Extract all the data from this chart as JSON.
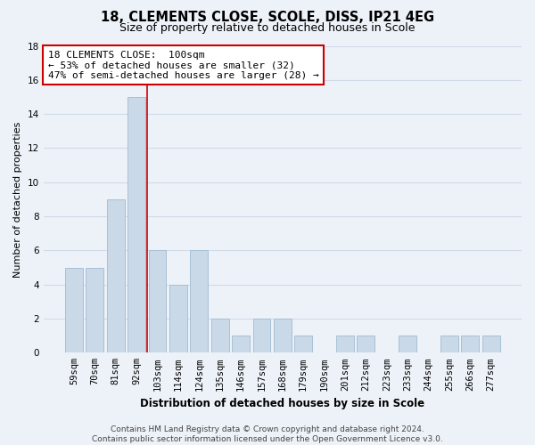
{
  "title1": "18, CLEMENTS CLOSE, SCOLE, DISS, IP21 4EG",
  "title2": "Size of property relative to detached houses in Scole",
  "xlabel": "Distribution of detached houses by size in Scole",
  "ylabel": "Number of detached properties",
  "categories": [
    "59sqm",
    "70sqm",
    "81sqm",
    "92sqm",
    "103sqm",
    "114sqm",
    "124sqm",
    "135sqm",
    "146sqm",
    "157sqm",
    "168sqm",
    "179sqm",
    "190sqm",
    "201sqm",
    "212sqm",
    "223sqm",
    "233sqm",
    "244sqm",
    "255sqm",
    "266sqm",
    "277sqm"
  ],
  "values": [
    5,
    5,
    9,
    15,
    6,
    4,
    6,
    2,
    1,
    2,
    2,
    1,
    0,
    1,
    1,
    0,
    1,
    0,
    1,
    1,
    1
  ],
  "bar_color": "#c9d9e8",
  "bar_edge_color": "#a8c0d6",
  "property_line_x": 3.5,
  "property_line_color": "#cc0000",
  "annotation_text": "18 CLEMENTS CLOSE:  100sqm\n← 53% of detached houses are smaller (32)\n47% of semi-detached houses are larger (28) →",
  "annotation_box_facecolor": "#ffffff",
  "annotation_box_edgecolor": "#cc0000",
  "ylim": [
    0,
    18
  ],
  "yticks": [
    0,
    2,
    4,
    6,
    8,
    10,
    12,
    14,
    16,
    18
  ],
  "grid_color": "#d0dae8",
  "background_color": "#edf2f8",
  "footer_text": "Contains HM Land Registry data © Crown copyright and database right 2024.\nContains public sector information licensed under the Open Government Licence v3.0.",
  "title1_fontsize": 10.5,
  "title2_fontsize": 9,
  "xlabel_fontsize": 8.5,
  "ylabel_fontsize": 8,
  "tick_fontsize": 7.5,
  "annotation_fontsize": 8,
  "footer_fontsize": 6.5
}
